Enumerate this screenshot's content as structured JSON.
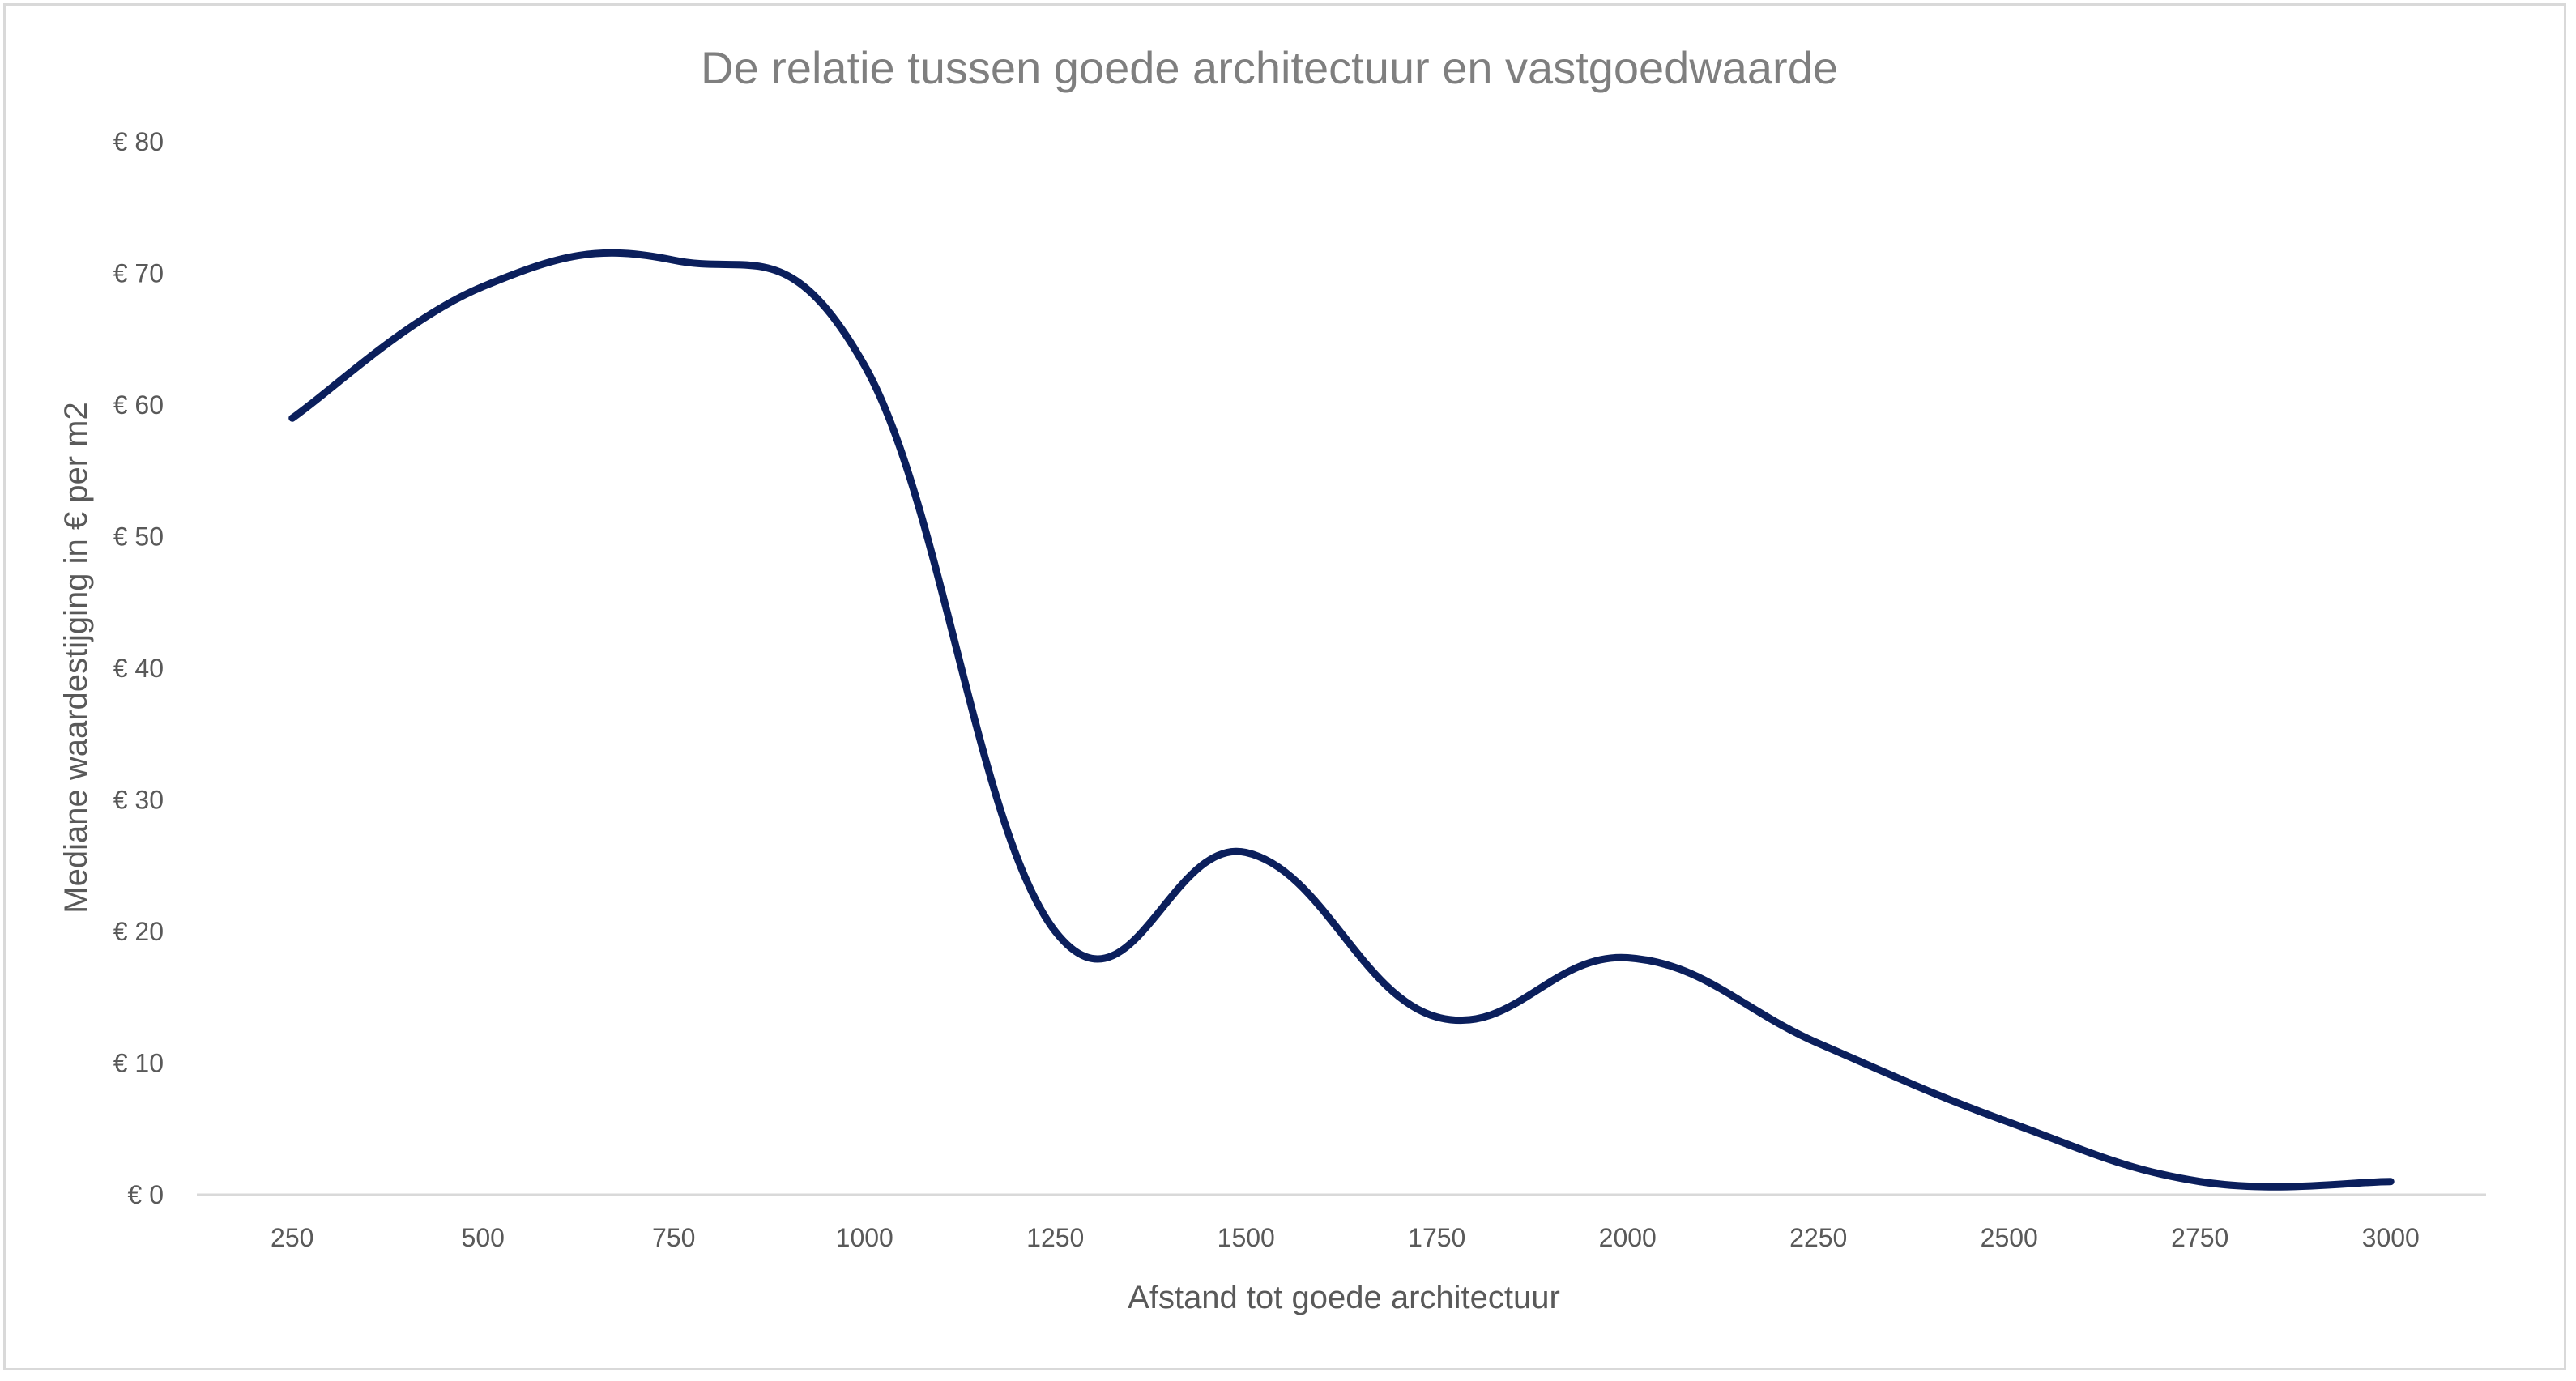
{
  "chart_data": {
    "type": "line",
    "title": "De relatie tussen goede architectuur en vastgoedwaarde",
    "xlabel": "Afstand tot goede architectuur",
    "ylabel": "Mediane waardestijging in € per m2",
    "x": [
      250,
      500,
      750,
      1000,
      1250,
      1500,
      1750,
      2000,
      2250,
      2500,
      2750,
      3000
    ],
    "x_tick_labels": [
      "250",
      "500",
      "750",
      "1000",
      "1250",
      "1500",
      "1750",
      "2000",
      "2250",
      "2500",
      "2750",
      "3000"
    ],
    "y_ticks": [
      0,
      10,
      20,
      30,
      40,
      50,
      60,
      70,
      80
    ],
    "y_tick_labels": [
      "€ 0",
      "€ 10",
      "€ 20",
      "€ 30",
      "€ 40",
      "€ 50",
      "€ 60",
      "€ 70",
      "€ 80"
    ],
    "ylim": [
      0,
      80
    ],
    "smooth": true,
    "grid": false,
    "legend": "none",
    "series": [
      {
        "values": [
          59,
          69,
          71,
          63,
          20,
          26,
          13.5,
          18,
          11.5,
          5.5,
          1,
          1
        ],
        "color": "#0b1f5c"
      }
    ],
    "colors": {
      "line": "#0b1f5c",
      "axis": "#d9d9d9",
      "text": "#595959",
      "title": "#7f7f7f"
    }
  }
}
